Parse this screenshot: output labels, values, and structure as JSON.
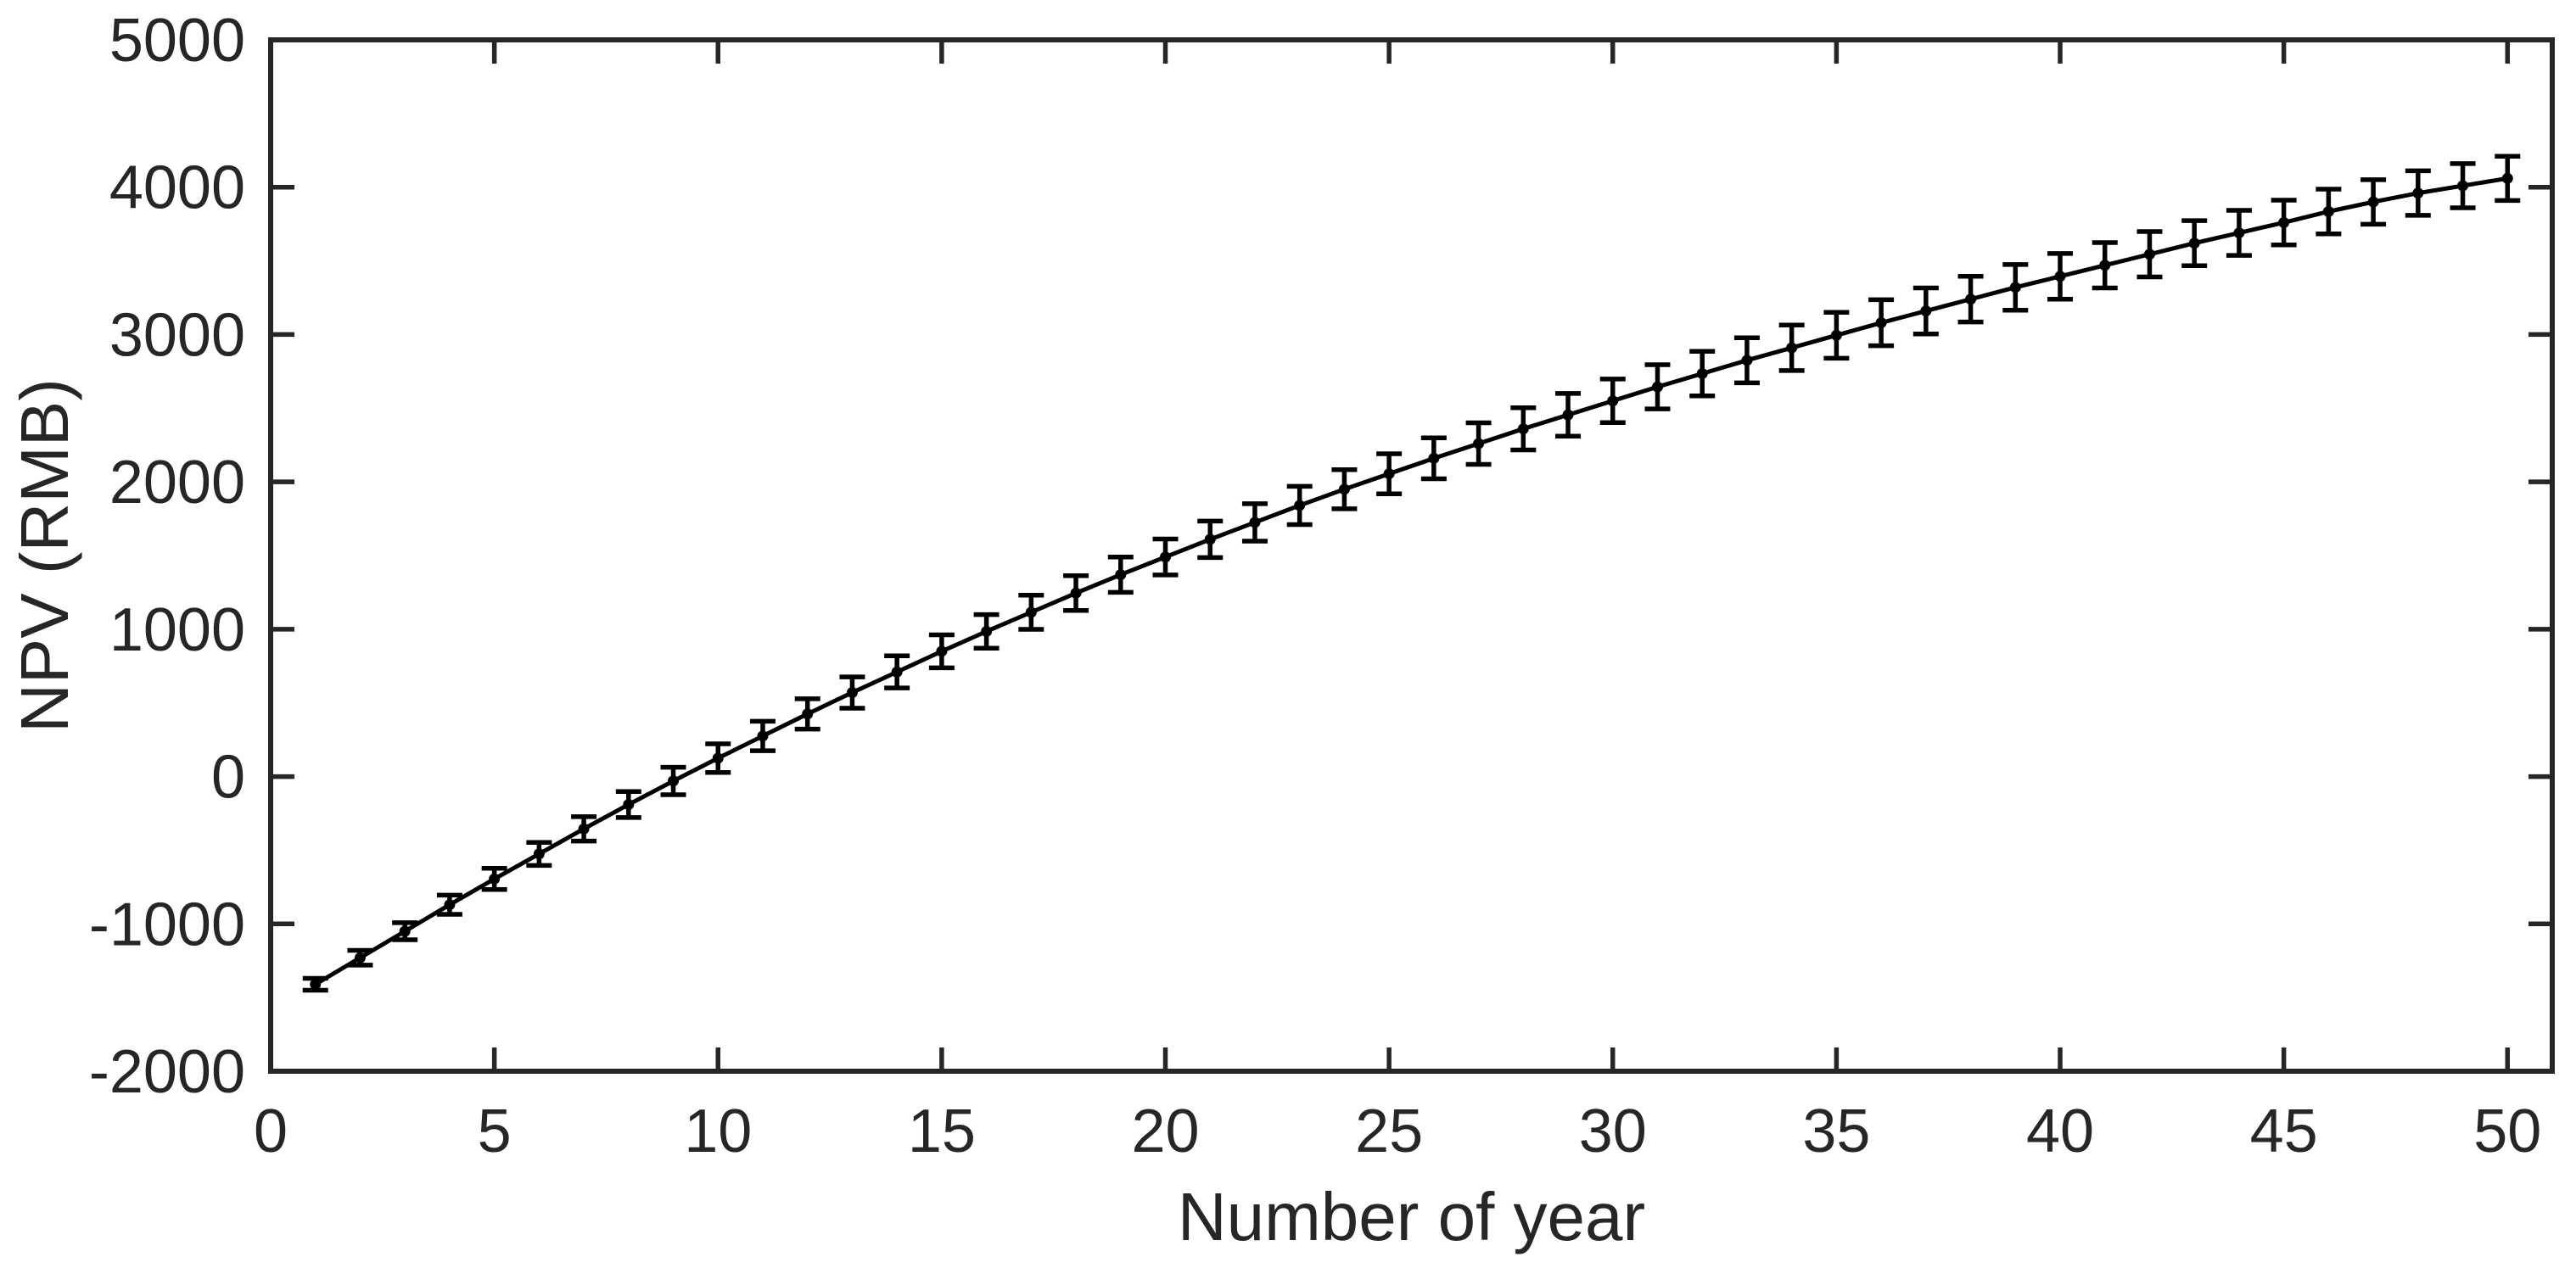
{
  "figure": {
    "title": "",
    "background": "#ffffff"
  },
  "chart_data": {
    "type": "line",
    "subtype": "errorbar",
    "title": "",
    "xlabel": "Number of year",
    "ylabel": "NPV (RMB)",
    "xlim": [
      0,
      51
    ],
    "ylim": [
      -2000,
      5000
    ],
    "grid": false,
    "legend": null,
    "xticks": [
      0,
      5,
      10,
      15,
      20,
      25,
      30,
      35,
      40,
      45,
      50
    ],
    "xticklabels": [
      "0",
      "5",
      "10",
      "15",
      "20",
      "25",
      "30",
      "35",
      "40",
      "45",
      "50"
    ],
    "yticks": [
      -2000,
      -1000,
      0,
      1000,
      2000,
      3000,
      4000,
      5000
    ],
    "yticklabels": [
      "-2000",
      "-1000",
      "0",
      "1000",
      "2000",
      "3000",
      "4000",
      "5000"
    ],
    "series": [
      {
        "name": "NPV",
        "x": [
          1,
          2,
          3,
          4,
          5,
          6,
          7,
          8,
          9,
          10,
          11,
          12,
          13,
          14,
          15,
          16,
          17,
          18,
          19,
          20,
          21,
          22,
          23,
          24,
          25,
          26,
          27,
          28,
          29,
          30,
          31,
          32,
          33,
          34,
          35,
          36,
          37,
          38,
          39,
          40,
          41,
          42,
          43,
          44,
          45,
          46,
          47,
          48,
          49,
          50
        ],
        "y": [
          -1410,
          -1230,
          -1050,
          -870,
          -695,
          -525,
          -355,
          -190,
          -30,
          125,
          275,
          425,
          570,
          710,
          850,
          985,
          1115,
          1245,
          1370,
          1490,
          1610,
          1725,
          1840,
          1950,
          2055,
          2160,
          2260,
          2360,
          2455,
          2550,
          2645,
          2735,
          2825,
          2910,
          2995,
          3080,
          3160,
          3240,
          3320,
          3395,
          3470,
          3545,
          3620,
          3690,
          3760,
          3835,
          3900,
          3960,
          4010,
          4060
        ],
        "yerr": [
          40,
          50,
          58,
          65,
          72,
          78,
          83,
          88,
          93,
          97,
          100,
          103,
          106,
          109,
          112,
          114,
          116,
          118,
          120,
          122,
          124,
          127,
          130,
          133,
          136,
          139,
          141,
          143,
          145,
          148,
          150,
          151,
          153,
          154,
          156,
          156,
          156,
          155,
          155,
          155,
          154,
          154,
          153,
          153,
          152,
          152,
          151,
          151,
          150,
          150
        ]
      }
    ],
    "colors": {
      "axis": "#262626",
      "line": "#000000",
      "marker": "#000000",
      "background": "#ffffff"
    }
  }
}
